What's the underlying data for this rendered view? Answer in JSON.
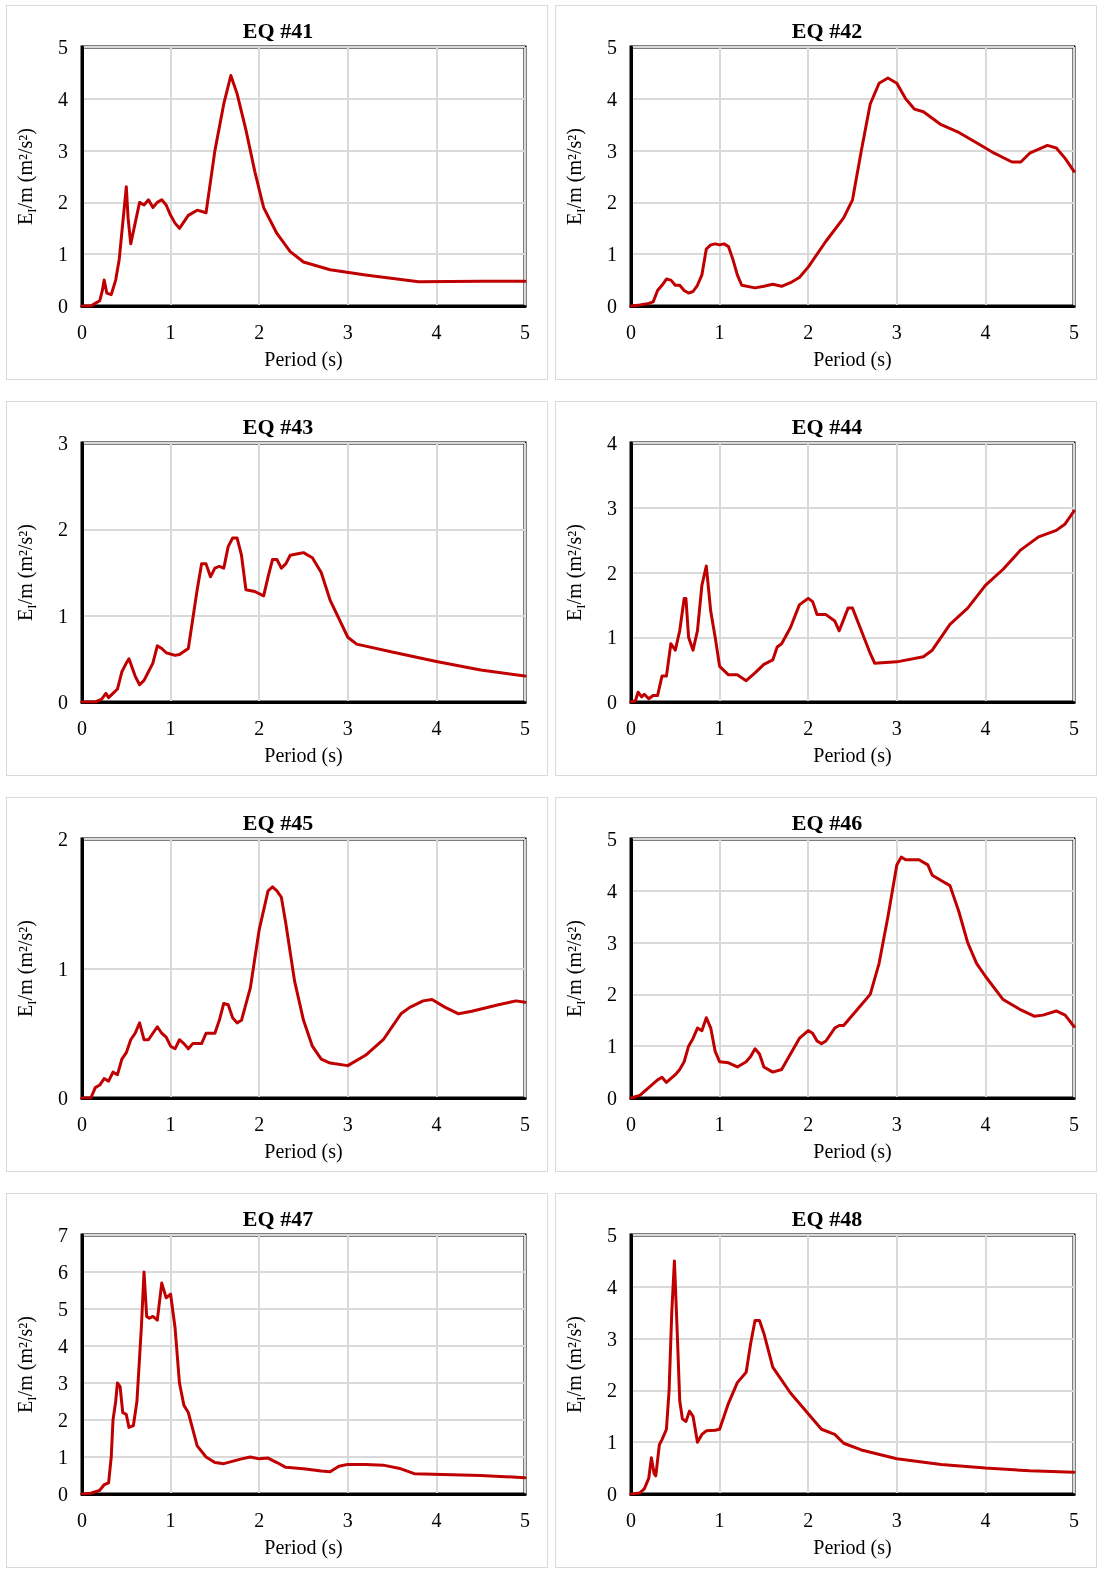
{
  "chart_data": [
    {
      "type": "line",
      "title": "EQ #41",
      "xlabel": "Period (s)",
      "ylabel": "E$_{I}$/m (m²/s²)",
      "xlim": [
        0,
        5
      ],
      "xticks": [
        0,
        1,
        2,
        3,
        4,
        5
      ],
      "ylim": [
        0,
        5
      ],
      "yticks": [
        0,
        1,
        2,
        3,
        4,
        5
      ],
      "grid": true,
      "series": [
        {
          "color": "#c00000",
          "x": [
            0,
            0.1,
            0.15,
            0.2,
            0.23,
            0.25,
            0.28,
            0.33,
            0.38,
            0.42,
            0.46,
            0.5,
            0.52,
            0.55,
            0.6,
            0.65,
            0.7,
            0.75,
            0.8,
            0.85,
            0.9,
            0.95,
            1.0,
            1.05,
            1.1,
            1.2,
            1.3,
            1.4,
            1.5,
            1.6,
            1.68,
            1.75,
            1.85,
            1.95,
            2.05,
            2.2,
            2.35,
            2.5,
            2.8,
            3.2,
            3.8,
            4.5,
            5
          ],
          "values": [
            0,
            0,
            0.05,
            0.1,
            0.3,
            0.5,
            0.25,
            0.22,
            0.5,
            0.9,
            1.6,
            2.3,
            1.7,
            1.2,
            1.6,
            2.0,
            1.95,
            2.05,
            1.9,
            2.0,
            2.05,
            1.95,
            1.75,
            1.6,
            1.5,
            1.75,
            1.85,
            1.8,
            3.0,
            3.9,
            4.45,
            4.1,
            3.4,
            2.6,
            1.9,
            1.4,
            1.05,
            0.85,
            0.7,
            0.6,
            0.47,
            0.48,
            0.48
          ]
        }
      ]
    },
    {
      "type": "line",
      "title": "EQ #42",
      "xlabel": "Period (s)",
      "ylabel": "E$_{I}$/m (m²/s²)",
      "xlim": [
        0,
        5
      ],
      "xticks": [
        0,
        1,
        2,
        3,
        4,
        5
      ],
      "ylim": [
        0,
        5
      ],
      "yticks": [
        0,
        1,
        2,
        3,
        4,
        5
      ],
      "grid": true,
      "series": [
        {
          "color": "#c00000",
          "x": [
            0,
            0.1,
            0.2,
            0.25,
            0.3,
            0.35,
            0.4,
            0.45,
            0.5,
            0.55,
            0.6,
            0.65,
            0.7,
            0.75,
            0.8,
            0.85,
            0.9,
            0.95,
            1.0,
            1.05,
            1.1,
            1.15,
            1.2,
            1.25,
            1.4,
            1.5,
            1.6,
            1.7,
            1.8,
            1.9,
            2.0,
            2.2,
            2.4,
            2.5,
            2.6,
            2.7,
            2.8,
            2.9,
            3.0,
            3.1,
            3.2,
            3.3,
            3.5,
            3.7,
            3.9,
            4.1,
            4.3,
            4.4,
            4.5,
            4.7,
            4.8,
            4.9,
            5
          ],
          "values": [
            0,
            0.02,
            0.05,
            0.08,
            0.3,
            0.4,
            0.52,
            0.5,
            0.4,
            0.4,
            0.3,
            0.25,
            0.28,
            0.4,
            0.6,
            1.1,
            1.18,
            1.2,
            1.18,
            1.2,
            1.15,
            0.9,
            0.6,
            0.4,
            0.35,
            0.38,
            0.42,
            0.38,
            0.45,
            0.55,
            0.75,
            1.25,
            1.7,
            2.05,
            3.0,
            3.9,
            4.3,
            4.4,
            4.3,
            4.0,
            3.8,
            3.75,
            3.5,
            3.35,
            3.15,
            2.95,
            2.78,
            2.78,
            2.95,
            3.1,
            3.05,
            2.85,
            2.6
          ]
        }
      ]
    },
    {
      "type": "line",
      "title": "EQ #43",
      "xlabel": "Period (s)",
      "ylabel": "E$_{I}$/m (m²/s²)",
      "xlim": [
        0,
        5
      ],
      "xticks": [
        0,
        1,
        2,
        3,
        4,
        5
      ],
      "ylim": [
        0,
        3
      ],
      "yticks": [
        0,
        1,
        2,
        3
      ],
      "grid": true,
      "series": [
        {
          "color": "#c00000",
          "x": [
            0,
            0.15,
            0.22,
            0.27,
            0.3,
            0.35,
            0.4,
            0.45,
            0.5,
            0.53,
            0.6,
            0.65,
            0.7,
            0.75,
            0.8,
            0.85,
            0.9,
            0.95,
            1.05,
            1.1,
            1.2,
            1.3,
            1.35,
            1.4,
            1.45,
            1.5,
            1.55,
            1.6,
            1.65,
            1.7,
            1.75,
            1.8,
            1.85,
            1.95,
            2.05,
            2.1,
            2.15,
            2.2,
            2.25,
            2.3,
            2.35,
            2.45,
            2.5,
            2.6,
            2.7,
            2.8,
            3.0,
            3.1,
            3.5,
            4.0,
            4.5,
            5
          ],
          "values": [
            0,
            0,
            0.03,
            0.1,
            0.05,
            0.1,
            0.15,
            0.35,
            0.45,
            0.5,
            0.3,
            0.2,
            0.25,
            0.35,
            0.45,
            0.65,
            0.62,
            0.57,
            0.54,
            0.55,
            0.62,
            1.3,
            1.6,
            1.6,
            1.45,
            1.55,
            1.57,
            1.55,
            1.8,
            1.9,
            1.9,
            1.7,
            1.3,
            1.28,
            1.23,
            1.45,
            1.65,
            1.65,
            1.55,
            1.6,
            1.7,
            1.72,
            1.73,
            1.67,
            1.5,
            1.18,
            0.75,
            0.67,
            0.58,
            0.47,
            0.37,
            0.3
          ]
        }
      ]
    },
    {
      "type": "line",
      "title": "EQ #44",
      "xlabel": "Period (s)",
      "ylabel": "E$_{I}$/m (m²/s²)",
      "xlim": [
        0,
        5
      ],
      "xticks": [
        0,
        1,
        2,
        3,
        4,
        5
      ],
      "ylim": [
        0,
        4
      ],
      "yticks": [
        0,
        1,
        2,
        3,
        4
      ],
      "grid": true,
      "series": [
        {
          "color": "#c00000",
          "x": [
            0,
            0.05,
            0.08,
            0.12,
            0.15,
            0.2,
            0.25,
            0.3,
            0.35,
            0.4,
            0.45,
            0.5,
            0.55,
            0.6,
            0.62,
            0.65,
            0.7,
            0.75,
            0.8,
            0.85,
            0.9,
            0.95,
            1.0,
            1.1,
            1.2,
            1.3,
            1.4,
            1.5,
            1.6,
            1.65,
            1.7,
            1.8,
            1.9,
            2.0,
            2.05,
            2.1,
            2.2,
            2.3,
            2.35,
            2.45,
            2.5,
            2.6,
            2.7,
            2.75,
            3.0,
            3.3,
            3.4,
            3.6,
            3.8,
            4.0,
            4.2,
            4.4,
            4.6,
            4.8,
            4.9,
            5
          ],
          "values": [
            0,
            0.02,
            0.15,
            0.08,
            0.12,
            0.05,
            0.1,
            0.1,
            0.4,
            0.4,
            0.9,
            0.8,
            1.1,
            1.6,
            1.6,
            1.0,
            0.8,
            1.1,
            1.8,
            2.1,
            1.4,
            1.0,
            0.55,
            0.42,
            0.42,
            0.33,
            0.45,
            0.58,
            0.65,
            0.85,
            0.9,
            1.15,
            1.5,
            1.6,
            1.55,
            1.35,
            1.35,
            1.25,
            1.1,
            1.45,
            1.45,
            1.1,
            0.75,
            0.6,
            0.62,
            0.7,
            0.8,
            1.2,
            1.45,
            1.8,
            2.05,
            2.35,
            2.55,
            2.65,
            2.75,
            2.95
          ]
        }
      ]
    },
    {
      "type": "line",
      "title": "EQ #45",
      "xlabel": "Period (s)",
      "ylabel": "E$_{I}$/m (m²/s²)",
      "xlim": [
        0,
        5
      ],
      "xticks": [
        0,
        1,
        2,
        3,
        4,
        5
      ],
      "ylim": [
        0,
        2
      ],
      "yticks": [
        0,
        1,
        2
      ],
      "grid": true,
      "series": [
        {
          "color": "#c00000",
          "x": [
            0,
            0.1,
            0.15,
            0.2,
            0.25,
            0.3,
            0.35,
            0.4,
            0.45,
            0.5,
            0.55,
            0.6,
            0.65,
            0.7,
            0.75,
            0.8,
            0.85,
            0.9,
            0.95,
            1.0,
            1.05,
            1.1,
            1.15,
            1.2,
            1.25,
            1.35,
            1.4,
            1.45,
            1.5,
            1.55,
            1.6,
            1.65,
            1.7,
            1.75,
            1.8,
            1.9,
            2.0,
            2.1,
            2.15,
            2.2,
            2.25,
            2.3,
            2.4,
            2.5,
            2.6,
            2.7,
            2.8,
            3.0,
            3.2,
            3.4,
            3.6,
            3.7,
            3.85,
            3.95,
            4.1,
            4.25,
            4.4,
            4.7,
            4.9,
            5
          ],
          "values": [
            0,
            0,
            0.08,
            0.1,
            0.15,
            0.13,
            0.2,
            0.18,
            0.3,
            0.35,
            0.45,
            0.5,
            0.58,
            0.45,
            0.45,
            0.5,
            0.55,
            0.5,
            0.47,
            0.4,
            0.38,
            0.45,
            0.42,
            0.38,
            0.42,
            0.42,
            0.5,
            0.5,
            0.5,
            0.6,
            0.73,
            0.72,
            0.62,
            0.58,
            0.6,
            0.85,
            1.3,
            1.6,
            1.63,
            1.6,
            1.55,
            1.35,
            0.9,
            0.6,
            0.4,
            0.3,
            0.27,
            0.25,
            0.33,
            0.45,
            0.65,
            0.7,
            0.75,
            0.76,
            0.7,
            0.65,
            0.67,
            0.72,
            0.75,
            0.74
          ]
        }
      ]
    },
    {
      "type": "line",
      "title": "EQ #46",
      "xlabel": "Period (s)",
      "ylabel": "E$_{I}$/m (m²/s²)",
      "xlim": [
        0,
        5
      ],
      "xticks": [
        0,
        1,
        2,
        3,
        4,
        5
      ],
      "ylim": [
        0,
        5
      ],
      "yticks": [
        0,
        1,
        2,
        3,
        4,
        5
      ],
      "grid": true,
      "series": [
        {
          "color": "#c00000",
          "x": [
            0,
            0.1,
            0.2,
            0.3,
            0.35,
            0.4,
            0.5,
            0.55,
            0.6,
            0.65,
            0.7,
            0.75,
            0.8,
            0.85,
            0.9,
            0.95,
            1.0,
            1.1,
            1.2,
            1.3,
            1.35,
            1.4,
            1.45,
            1.5,
            1.6,
            1.7,
            1.8,
            1.9,
            2.0,
            2.05,
            2.1,
            2.15,
            2.2,
            2.3,
            2.35,
            2.4,
            2.6,
            2.7,
            2.8,
            2.9,
            3.0,
            3.05,
            3.1,
            3.25,
            3.35,
            3.4,
            3.5,
            3.6,
            3.7,
            3.8,
            3.9,
            4.0,
            4.2,
            4.4,
            4.55,
            4.65,
            4.8,
            4.9,
            5
          ],
          "values": [
            0,
            0.05,
            0.2,
            0.35,
            0.4,
            0.3,
            0.45,
            0.55,
            0.7,
            1.0,
            1.15,
            1.35,
            1.3,
            1.55,
            1.35,
            0.9,
            0.7,
            0.68,
            0.6,
            0.7,
            0.8,
            0.95,
            0.85,
            0.6,
            0.5,
            0.55,
            0.85,
            1.15,
            1.3,
            1.25,
            1.1,
            1.05,
            1.1,
            1.35,
            1.4,
            1.4,
            1.8,
            2.0,
            2.6,
            3.5,
            4.5,
            4.65,
            4.6,
            4.6,
            4.5,
            4.3,
            4.2,
            4.1,
            3.6,
            3.0,
            2.6,
            2.35,
            1.9,
            1.7,
            1.58,
            1.6,
            1.68,
            1.6,
            1.38
          ]
        }
      ]
    },
    {
      "type": "line",
      "title": "EQ #47",
      "xlabel": "Period (s)",
      "ylabel": "E$_{I}$/m (m²/s²)",
      "xlim": [
        0,
        5
      ],
      "xticks": [
        0,
        1,
        2,
        3,
        4,
        5
      ],
      "ylim": [
        0,
        7
      ],
      "yticks": [
        0,
        1,
        2,
        3,
        4,
        5,
        6,
        7
      ],
      "grid": true,
      "series": [
        {
          "color": "#c00000",
          "x": [
            0,
            0.1,
            0.2,
            0.25,
            0.3,
            0.33,
            0.35,
            0.38,
            0.4,
            0.43,
            0.46,
            0.5,
            0.53,
            0.58,
            0.62,
            0.67,
            0.7,
            0.73,
            0.76,
            0.8,
            0.85,
            0.9,
            0.95,
            1.0,
            1.05,
            1.1,
            1.15,
            1.2,
            1.3,
            1.4,
            1.5,
            1.6,
            1.8,
            1.9,
            2.0,
            2.1,
            2.2,
            2.3,
            2.4,
            2.5,
            2.7,
            2.8,
            2.9,
            3.0,
            3.2,
            3.4,
            3.6,
            3.75,
            4.5,
            5
          ],
          "values": [
            0,
            0.02,
            0.1,
            0.25,
            0.3,
            1.0,
            2.0,
            2.5,
            3.0,
            2.9,
            2.2,
            2.15,
            1.8,
            1.85,
            2.5,
            4.5,
            6.0,
            4.8,
            4.75,
            4.8,
            4.7,
            5.7,
            5.3,
            5.4,
            4.5,
            3.0,
            2.4,
            2.2,
            1.3,
            1.0,
            0.85,
            0.82,
            0.95,
            1.0,
            0.95,
            0.97,
            0.85,
            0.72,
            0.7,
            0.68,
            0.62,
            0.6,
            0.75,
            0.8,
            0.8,
            0.78,
            0.68,
            0.55,
            0.5,
            0.44
          ]
        }
      ]
    },
    {
      "type": "line",
      "title": "EQ #48",
      "xlabel": "Period (s)",
      "ylabel": "E$_{I}$/m (m²/s²)",
      "xlim": [
        0,
        5
      ],
      "xticks": [
        0,
        1,
        2,
        3,
        4,
        5
      ],
      "ylim": [
        0,
        5
      ],
      "yticks": [
        0,
        1,
        2,
        3,
        4,
        5
      ],
      "grid": true,
      "series": [
        {
          "color": "#c00000",
          "x": [
            0,
            0.1,
            0.15,
            0.2,
            0.23,
            0.26,
            0.28,
            0.32,
            0.35,
            0.4,
            0.43,
            0.46,
            0.49,
            0.52,
            0.55,
            0.58,
            0.62,
            0.66,
            0.7,
            0.75,
            0.8,
            0.85,
            0.95,
            1.0,
            1.1,
            1.2,
            1.3,
            1.35,
            1.4,
            1.45,
            1.5,
            1.6,
            1.7,
            1.8,
            2.0,
            2.15,
            2.3,
            2.4,
            2.6,
            3.0,
            3.5,
            4.0,
            4.5,
            5
          ],
          "values": [
            0,
            0.02,
            0.1,
            0.3,
            0.7,
            0.4,
            0.35,
            0.95,
            1.05,
            1.25,
            2.0,
            3.5,
            4.5,
            3.2,
            1.8,
            1.45,
            1.4,
            1.6,
            1.5,
            1.0,
            1.15,
            1.22,
            1.23,
            1.25,
            1.75,
            2.15,
            2.35,
            2.9,
            3.35,
            3.35,
            3.1,
            2.45,
            2.2,
            1.95,
            1.55,
            1.25,
            1.15,
            0.98,
            0.85,
            0.68,
            0.57,
            0.5,
            0.45,
            0.42
          ]
        }
      ]
    }
  ]
}
